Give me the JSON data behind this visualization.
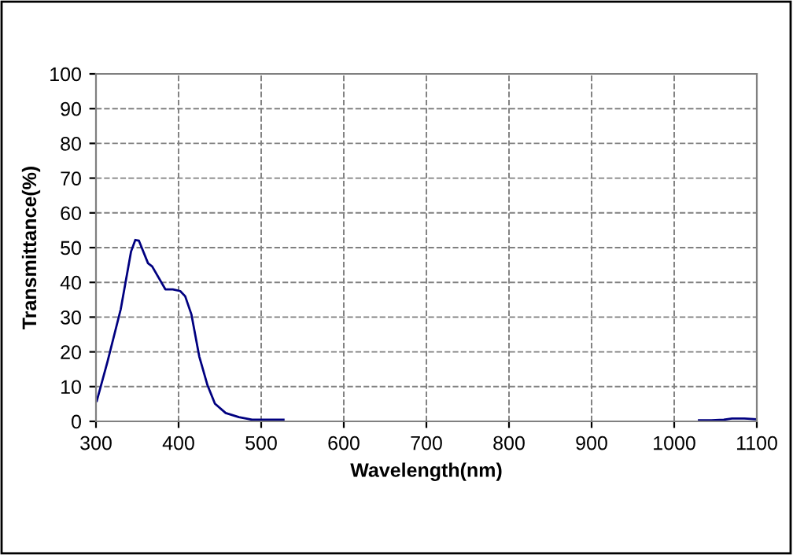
{
  "chart_data": {
    "type": "line",
    "xlabel": "Wavelength(nm)",
    "ylabel": "Transmittance(%)",
    "series": [
      {
        "color": "#000080",
        "x": [
          301,
          314,
          330,
          342.5,
          347.6,
          352,
          363,
          368,
          384,
          393,
          402,
          408,
          415.5,
          425,
          435,
          444,
          457,
          473,
          489,
          527,
          780,
          1030,
          1045,
          1060,
          1070,
          1085,
          1100
        ],
        "values": [
          5.9,
          17.2,
          32.3,
          48.9,
          52.2,
          52,
          45.5,
          44.6,
          38,
          38,
          37.5,
          36,
          30.8,
          18.7,
          10.4,
          5.1,
          2.4,
          1.2,
          0.5,
          0.5,
          null,
          0.3,
          0.3,
          0.5,
          0.8,
          0.8,
          0.6
        ]
      }
    ],
    "xlim": [
      300,
      1100
    ],
    "xticks": [
      300,
      400,
      500,
      600,
      700,
      800,
      900,
      1000,
      1100
    ],
    "ylim": [
      0,
      100
    ],
    "yticks": [
      0,
      10,
      20,
      30,
      40,
      50,
      60,
      70,
      80,
      90,
      100
    ],
    "grid": true,
    "marker": "none",
    "line_style": "solid",
    "legend": false
  }
}
